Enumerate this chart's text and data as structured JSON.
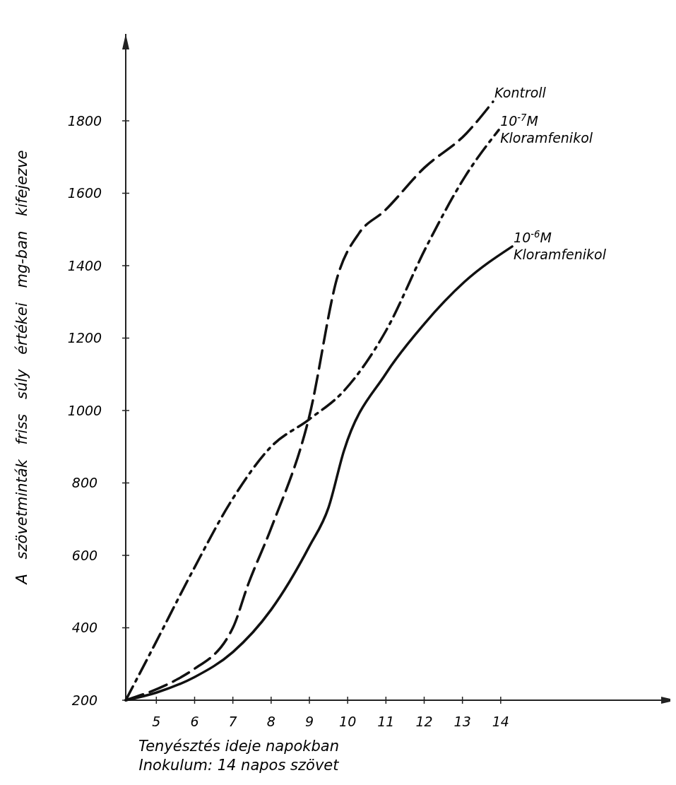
{
  "chart_data": {
    "type": "line",
    "ylabel": "A szövetminták friss súly értékei mg-ban kifejezve",
    "xlabel": "Tenyésztés ideje napokban",
    "annotations": [
      "Inokulum: 14 napos szövet"
    ],
    "xlim": [
      4.2,
      18.6
    ],
    "xticks": [
      5,
      6,
      7,
      8,
      9,
      10,
      11,
      12,
      13,
      14
    ],
    "ylim": [
      200,
      2040
    ],
    "yticks": [
      200,
      400,
      600,
      800,
      1000,
      1200,
      1400,
      1600,
      1800
    ],
    "grid": false,
    "series": [
      {
        "name": "Kontroll",
        "color": "#111111",
        "line_style": "dashed",
        "x": [
          4.2,
          5.5,
          5.9,
          7.0,
          7.4,
          8.0,
          9.0,
          9.75,
          10.3,
          10.95,
          12.0,
          13.1,
          13.8
        ],
        "values": [
          200,
          255,
          280,
          400,
          520,
          675,
          985,
          1375,
          1490,
          1550,
          1670,
          1765,
          1853
        ]
      },
      {
        "name": "10$^{-7}$M Kloramfenikol",
        "color": "#111111",
        "line_style": "dashdot",
        "x": [
          4.2,
          4.95,
          5.95,
          6.97,
          7.98,
          9.0,
          9.9,
          11.0,
          12.06,
          13.08,
          13.95
        ],
        "values": [
          200,
          352,
          557,
          752,
          898,
          976,
          1054,
          1220,
          1453,
          1648,
          1775
        ]
      },
      {
        "name": "10$^{-6}$M Kloramfenikol",
        "color": "#111111",
        "line_style": "solid",
        "x": [
          4.2,
          5.0,
          6.0,
          7.0,
          8.0,
          9.0,
          9.5,
          9.9,
          11.0,
          12.0,
          13.06,
          14.3
        ],
        "values": [
          200,
          221,
          264,
          333,
          450,
          625,
          732,
          888,
          1102,
          1239,
          1356,
          1453
        ]
      }
    ]
  }
}
